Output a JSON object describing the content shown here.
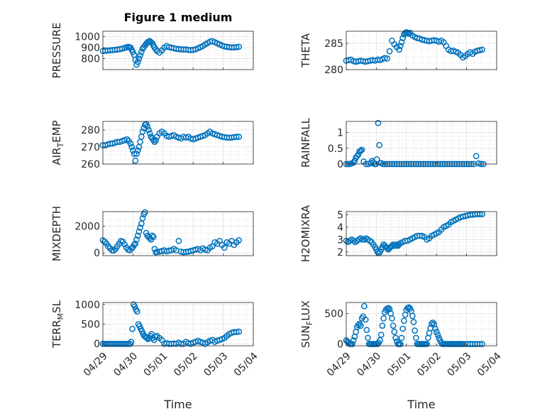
{
  "figure_title": "Figure 1 medium",
  "xlabel": "Time",
  "marker_color": "#0072BD",
  "chart_data": [
    {
      "type": "scatter",
      "ylabel": "PRESSURE",
      "ylim": [
        700,
        1050
      ],
      "yticks": [
        800,
        900,
        1000
      ],
      "xlim": [
        0,
        5
      ],
      "xticklabels": [
        "04/29",
        "04/30",
        "05/01",
        "05/02",
        "05/03",
        "05/04"
      ],
      "x": [
        0,
        0.08,
        0.16,
        0.24,
        0.32,
        0.4,
        0.48,
        0.56,
        0.64,
        0.72,
        0.78,
        0.84,
        0.88,
        0.92,
        0.96,
        1.0,
        1.04,
        1.08,
        1.12,
        1.16,
        1.2,
        1.24,
        1.28,
        1.32,
        1.36,
        1.4,
        1.44,
        1.48,
        1.52,
        1.56,
        1.6,
        1.64,
        1.68,
        1.72,
        1.76,
        1.8,
        1.88,
        1.96,
        2.04,
        2.12,
        2.2,
        2.28,
        2.36,
        2.44,
        2.52,
        2.6,
        2.68,
        2.76,
        2.84,
        2.92,
        3.0,
        3.08,
        3.16,
        3.24,
        3.32,
        3.4,
        3.48,
        3.56,
        3.64,
        3.72,
        3.8,
        3.88,
        3.96,
        4.04,
        4.12,
        4.2,
        4.28,
        4.36,
        4.44,
        4.52
      ],
      "y": [
        870,
        872,
        874,
        876,
        878,
        880,
        883,
        887,
        891,
        897,
        903,
        908,
        905,
        900,
        880,
        860,
        835,
        790,
        745,
        770,
        800,
        830,
        860,
        890,
        905,
        920,
        935,
        948,
        955,
        960,
        950,
        940,
        920,
        900,
        885,
        870,
        855,
        875,
        900,
        915,
        905,
        900,
        895,
        890,
        887,
        885,
        883,
        885,
        880,
        878,
        880,
        885,
        895,
        905,
        915,
        930,
        942,
        955,
        960,
        950,
        940,
        930,
        920,
        912,
        908,
        905,
        902,
        903,
        905,
        908
      ],
      "xtick_labels_visible": false
    },
    {
      "type": "scatter",
      "ylabel": "THETA",
      "ylim": [
        280,
        287.3
      ],
      "yticks": [
        280,
        285
      ],
      "xlim": [
        0,
        5
      ],
      "xticklabels": [
        "04/29",
        "04/30",
        "05/01",
        "05/02",
        "05/03",
        "05/04"
      ],
      "x": [
        0,
        0.08,
        0.16,
        0.24,
        0.32,
        0.4,
        0.48,
        0.56,
        0.64,
        0.72,
        0.8,
        0.88,
        0.96,
        1.04,
        1.12,
        1.2,
        1.28,
        1.36,
        1.44,
        1.52,
        1.6,
        1.68,
        1.76,
        1.8,
        1.84,
        1.88,
        1.92,
        1.96,
        2.0,
        2.04,
        2.08,
        2.12,
        2.2,
        2.28,
        2.36,
        2.44,
        2.52,
        2.6,
        2.68,
        2.76,
        2.84,
        2.92,
        3.0,
        3.08,
        3.16,
        3.24,
        3.32,
        3.4,
        3.48,
        3.56,
        3.64,
        3.72,
        3.8,
        3.88,
        3.96,
        4.04,
        4.12,
        4.2,
        4.28,
        4.36,
        4.44,
        4.52
      ],
      "y": [
        281.7,
        281.8,
        281.9,
        281.6,
        281.5,
        281.6,
        281.7,
        281.6,
        281.5,
        281.6,
        281.7,
        281.8,
        281.7,
        281.9,
        281.8,
        282.0,
        282.2,
        282.1,
        283.5,
        285.5,
        284.8,
        284.3,
        283.8,
        284.5,
        285.2,
        286.0,
        286.7,
        287.0,
        287.1,
        287.0,
        286.8,
        287.0,
        286.5,
        286.2,
        286.0,
        285.9,
        285.7,
        285.6,
        285.5,
        285.4,
        285.5,
        285.6,
        285.5,
        285.3,
        285.5,
        285.2,
        284.5,
        283.8,
        283.5,
        283.6,
        283.4,
        283.2,
        282.8,
        282.3,
        282.6,
        283.0,
        283.3,
        283.0,
        283.4,
        283.6,
        283.7,
        283.8
      ],
      "xtick_labels_visible": false
    },
    {
      "type": "scatter",
      "ylabel": "AIR_TEMP",
      "ylabel_main": "AIR",
      "ylabel_sub": "T",
      "ylabel_rest": "EMP",
      "ylim": [
        260,
        285
      ],
      "yticks": [
        260,
        270,
        280
      ],
      "xlim": [
        0,
        5
      ],
      "xticklabels": [
        "04/29",
        "04/30",
        "05/01",
        "05/02",
        "05/03",
        "05/04"
      ],
      "x": [
        0,
        0.08,
        0.16,
        0.24,
        0.32,
        0.4,
        0.48,
        0.56,
        0.64,
        0.72,
        0.8,
        0.86,
        0.92,
        0.96,
        1.0,
        1.04,
        1.08,
        1.12,
        1.16,
        1.2,
        1.24,
        1.28,
        1.32,
        1.36,
        1.4,
        1.44,
        1.48,
        1.52,
        1.56,
        1.6,
        1.64,
        1.68,
        1.72,
        1.76,
        1.8,
        1.88,
        1.96,
        2.04,
        2.12,
        2.2,
        2.28,
        2.36,
        2.44,
        2.52,
        2.6,
        2.68,
        2.76,
        2.84,
        2.92,
        3.0,
        3.08,
        3.16,
        3.24,
        3.32,
        3.4,
        3.48,
        3.56,
        3.64,
        3.72,
        3.8,
        3.88,
        3.96,
        4.04,
        4.12,
        4.2,
        4.28,
        4.36,
        4.44,
        4.52
      ],
      "y": [
        271,
        271,
        271.5,
        272,
        272,
        272.5,
        273,
        273,
        273.5,
        274,
        274.5,
        273.5,
        272,
        270,
        268,
        266,
        262,
        266,
        268,
        270,
        273,
        276,
        279,
        281,
        283,
        283.5,
        282,
        280,
        278,
        276,
        275,
        274,
        273,
        274,
        276,
        278,
        279,
        278,
        276.5,
        276,
        276.5,
        277,
        276,
        275.5,
        275,
        276,
        275.5,
        276,
        275,
        274.5,
        275,
        275.5,
        276,
        276.5,
        277,
        278,
        279,
        278,
        277.5,
        277,
        276.5,
        276,
        275.8,
        275.5,
        275.5,
        275.5,
        275.8,
        276,
        276
      ],
      "xtick_labels_visible": false
    },
    {
      "type": "scatter",
      "ylabel": "RAINFALL",
      "ylim": [
        0,
        1.35
      ],
      "yticks": [
        0,
        0.5,
        1
      ],
      "xlim": [
        0,
        5
      ],
      "xticklabels": [
        "04/29",
        "04/30",
        "05/01",
        "05/02",
        "05/03",
        "05/04"
      ],
      "x": [
        0,
        0.06,
        0.12,
        0.18,
        0.24,
        0.28,
        0.32,
        0.36,
        0.4,
        0.44,
        0.48,
        0.52,
        0.58,
        0.66,
        0.74,
        0.82,
        0.86,
        0.9,
        0.94,
        0.98,
        1.02,
        1.06,
        1.1,
        1.16,
        1.22,
        1.28,
        1.36,
        1.44,
        1.52,
        1.6,
        1.68,
        1.76,
        1.84,
        1.92,
        2.0,
        2.08,
        2.16,
        2.24,
        2.32,
        2.4,
        2.48,
        2.56,
        2.64,
        2.72,
        2.8,
        2.88,
        2.96,
        3.04,
        3.12,
        3.2,
        3.28,
        3.36,
        3.44,
        3.52,
        3.6,
        3.68,
        3.76,
        3.84,
        3.92,
        4.0,
        4.08,
        4.16,
        4.24,
        4.32,
        4.4,
        4.48,
        4.56
      ],
      "y": [
        0,
        0,
        0,
        0.02,
        0.05,
        0.1,
        0.2,
        0.25,
        0.3,
        0.4,
        0.42,
        0.45,
        0.08,
        0,
        0,
        0.03,
        0.1,
        0.05,
        0,
        0,
        0.15,
        1.3,
        0.6,
        0.03,
        0,
        0,
        0,
        0,
        0,
        0,
        0,
        0,
        0,
        0,
        0,
        0,
        0,
        0,
        0,
        0,
        0,
        0,
        0,
        0,
        0,
        0,
        0,
        0,
        0,
        0,
        0,
        0,
        0,
        0,
        0,
        0,
        0,
        0,
        0,
        0,
        0,
        0,
        0,
        0.25,
        0.02,
        0,
        0
      ],
      "xtick_labels_visible": false
    },
    {
      "type": "scatter",
      "ylabel": "MIXDEPTH",
      "ylim": [
        -200,
        3100
      ],
      "yticks": [
        0,
        2000
      ],
      "xlim": [
        0,
        5
      ],
      "xticklabels": [
        "04/29",
        "04/30",
        "05/01",
        "05/02",
        "05/03",
        "05/04"
      ],
      "x": [
        0,
        0.06,
        0.12,
        0.18,
        0.24,
        0.3,
        0.36,
        0.42,
        0.48,
        0.54,
        0.6,
        0.66,
        0.72,
        0.78,
        0.84,
        0.9,
        0.96,
        1.0,
        1.04,
        1.08,
        1.12,
        1.16,
        1.2,
        1.24,
        1.28,
        1.32,
        1.36,
        1.4,
        1.44,
        1.48,
        1.52,
        1.56,
        1.6,
        1.64,
        1.68,
        1.72,
        1.76,
        1.8,
        1.88,
        1.96,
        2.04,
        2.12,
        2.2,
        2.28,
        2.36,
        2.44,
        2.52,
        2.6,
        2.68,
        2.76,
        2.84,
        2.92,
        3.0,
        3.08,
        3.16,
        3.24,
        3.32,
        3.4,
        3.48,
        3.56,
        3.64,
        3.72,
        3.8,
        3.88,
        3.96,
        4.04,
        4.12,
        4.2,
        4.28,
        4.36,
        4.44,
        4.52
      ],
      "y": [
        950,
        850,
        700,
        500,
        350,
        200,
        180,
        300,
        500,
        700,
        900,
        850,
        650,
        400,
        250,
        200,
        350,
        450,
        600,
        700,
        1000,
        1300,
        1600,
        1900,
        2200,
        2600,
        2900,
        3050,
        1500,
        1300,
        1200,
        1100,
        1000,
        1300,
        1200,
        300,
        50,
        80,
        100,
        150,
        200,
        120,
        180,
        200,
        300,
        200,
        900,
        100,
        50,
        80,
        100,
        150,
        200,
        250,
        300,
        200,
        350,
        250,
        200,
        400,
        500,
        800,
        700,
        900,
        600,
        400,
        800,
        700,
        900,
        600,
        800,
        950
      ],
      "xtick_labels_visible": false
    },
    {
      "type": "scatter",
      "ylabel": "H2OMIXRA",
      "ylim": [
        1.7,
        5.25
      ],
      "yticks": [
        2,
        3,
        4,
        5
      ],
      "xlim": [
        0,
        5
      ],
      "xticklabels": [
        "04/29",
        "04/30",
        "05/01",
        "05/02",
        "05/03",
        "05/04"
      ],
      "x": [
        0,
        0.06,
        0.12,
        0.18,
        0.24,
        0.3,
        0.36,
        0.42,
        0.48,
        0.54,
        0.6,
        0.66,
        0.72,
        0.78,
        0.84,
        0.9,
        0.96,
        1.0,
        1.04,
        1.08,
        1.12,
        1.16,
        1.2,
        1.24,
        1.28,
        1.32,
        1.36,
        1.4,
        1.44,
        1.48,
        1.52,
        1.56,
        1.6,
        1.64,
        1.68,
        1.72,
        1.76,
        1.8,
        1.88,
        1.96,
        2.04,
        2.12,
        2.2,
        2.28,
        2.36,
        2.44,
        2.52,
        2.6,
        2.68,
        2.76,
        2.84,
        2.92,
        3.0,
        3.08,
        3.16,
        3.24,
        3.32,
        3.4,
        3.48,
        3.56,
        3.64,
        3.72,
        3.8,
        3.88,
        3.96,
        4.04,
        4.12,
        4.2,
        4.28,
        4.36,
        4.44,
        4.52
      ],
      "y": [
        2.9,
        2.8,
        2.9,
        3.0,
        2.9,
        2.8,
        2.9,
        3.0,
        3.1,
        3.0,
        3.0,
        3.1,
        3.0,
        2.9,
        2.8,
        2.6,
        2.4,
        2.2,
        2.0,
        1.9,
        2.0,
        2.2,
        2.4,
        2.6,
        2.5,
        2.4,
        2.3,
        2.2,
        2.3,
        2.4,
        2.5,
        2.6,
        2.5,
        2.5,
        2.6,
        2.5,
        2.6,
        2.7,
        2.8,
        2.9,
        2.9,
        3.0,
        3.1,
        3.2,
        3.3,
        3.3,
        3.3,
        3.2,
        3.0,
        3.1,
        3.3,
        3.4,
        3.5,
        3.6,
        3.8,
        4.0,
        4.1,
        4.2,
        4.4,
        4.5,
        4.6,
        4.7,
        4.8,
        4.85,
        4.9,
        4.95,
        5.0,
        5.0,
        5.05,
        5.05,
        5.05,
        5.05
      ],
      "xtick_labels_visible": false
    },
    {
      "type": "scatter",
      "ylabel": "TERR_MSL",
      "ylabel_main": "TERR",
      "ylabel_sub": "M",
      "ylabel_rest": "SL",
      "ylim": [
        -50,
        1050
      ],
      "yticks": [
        0,
        500,
        1000
      ],
      "xlim": [
        0,
        5
      ],
      "xticklabels": [
        "04/29",
        "04/30",
        "05/01",
        "05/02",
        "05/03",
        "05/04"
      ],
      "x": [
        0,
        0.06,
        0.12,
        0.18,
        0.24,
        0.3,
        0.36,
        0.42,
        0.48,
        0.54,
        0.6,
        0.66,
        0.72,
        0.78,
        0.84,
        0.9,
        0.94,
        0.98,
        1.02,
        1.06,
        1.1,
        1.14,
        1.18,
        1.22,
        1.26,
        1.3,
        1.34,
        1.38,
        1.42,
        1.46,
        1.5,
        1.54,
        1.58,
        1.62,
        1.66,
        1.7,
        1.74,
        1.8,
        1.88,
        1.96,
        2.04,
        2.12,
        2.2,
        2.28,
        2.36,
        2.44,
        2.52,
        2.6,
        2.68,
        2.76,
        2.84,
        2.92,
        3.0,
        3.08,
        3.16,
        3.24,
        3.32,
        3.4,
        3.48,
        3.56,
        3.64,
        3.72,
        3.8,
        3.88,
        3.96,
        4.04,
        4.12,
        4.2,
        4.28,
        4.36,
        4.44,
        4.52
      ],
      "y": [
        0,
        0,
        0,
        0,
        0,
        0,
        0,
        0,
        0,
        0,
        0,
        0,
        0,
        0,
        0,
        0,
        50,
        380,
        1000,
        950,
        870,
        820,
        500,
        450,
        380,
        320,
        250,
        200,
        180,
        150,
        120,
        150,
        200,
        250,
        150,
        100,
        180,
        200,
        150,
        100,
        0,
        20,
        0,
        0,
        10,
        0,
        30,
        0,
        0,
        50,
        20,
        0,
        30,
        50,
        80,
        50,
        30,
        0,
        40,
        80,
        100,
        50,
        80,
        100,
        120,
        150,
        200,
        250,
        280,
        300,
        300,
        310
      ],
      "xtick_labels_visible": true
    },
    {
      "type": "scatter",
      "ylabel": "SUN_FLUX",
      "ylabel_main": "SUN",
      "ylabel_sub": "F",
      "ylabel_rest": "LUX",
      "ylim": [
        -30,
        680
      ],
      "yticks": [
        0,
        500
      ],
      "xlim": [
        0,
        5
      ],
      "xticklabels": [
        "04/29",
        "04/30",
        "05/01",
        "05/02",
        "05/03",
        "05/04"
      ],
      "x": [
        0,
        0.04,
        0.08,
        0.12,
        0.16,
        0.2,
        0.24,
        0.28,
        0.32,
        0.36,
        0.4,
        0.44,
        0.48,
        0.52,
        0.56,
        0.6,
        0.64,
        0.68,
        0.72,
        0.76,
        0.8,
        0.84,
        0.88,
        0.92,
        0.96,
        1.0,
        1.04,
        1.08,
        1.12,
        1.16,
        1.2,
        1.24,
        1.28,
        1.32,
        1.36,
        1.4,
        1.44,
        1.48,
        1.52,
        1.56,
        1.6,
        1.64,
        1.68,
        1.72,
        1.76,
        1.8,
        1.84,
        1.88,
        1.92,
        1.96,
        2.0,
        2.04,
        2.08,
        2.12,
        2.16,
        2.2,
        2.24,
        2.28,
        2.32,
        2.36,
        2.4,
        2.44,
        2.48,
        2.52,
        2.56,
        2.6,
        2.64,
        2.68,
        2.72,
        2.76,
        2.8,
        2.84,
        2.88,
        2.92,
        2.96,
        3.0,
        3.04,
        3.08,
        3.12,
        3.16,
        3.2,
        3.24,
        3.28,
        3.32,
        3.36,
        3.4,
        3.44,
        3.48,
        3.52,
        3.56,
        3.6,
        3.64,
        3.68,
        3.72,
        3.76,
        3.8,
        3.84,
        3.88,
        3.96,
        4.04,
        4.12,
        4.2,
        4.28,
        4.36,
        4.44,
        4.52
      ],
      "y": [
        60,
        40,
        20,
        0,
        0,
        0,
        60,
        120,
        200,
        280,
        310,
        330,
        300,
        420,
        450,
        620,
        400,
        230,
        100,
        0,
        0,
        0,
        0,
        0,
        0,
        0,
        0,
        20,
        60,
        150,
        300,
        420,
        520,
        560,
        580,
        590,
        570,
        500,
        420,
        300,
        200,
        100,
        40,
        0,
        0,
        0,
        100,
        250,
        380,
        480,
        560,
        590,
        600,
        580,
        540,
        460,
        360,
        220,
        100,
        0,
        0,
        0,
        0,
        0,
        0,
        0,
        0,
        0,
        100,
        180,
        260,
        330,
        350,
        320,
        250,
        200,
        150,
        100,
        60,
        20,
        0,
        0,
        0,
        0,
        0,
        0,
        0,
        0,
        0,
        0,
        0,
        0,
        0,
        0,
        0,
        0,
        0,
        0,
        0,
        0,
        0,
        0,
        0,
        0,
        0,
        0
      ],
      "xtick_labels_visible": true
    }
  ]
}
